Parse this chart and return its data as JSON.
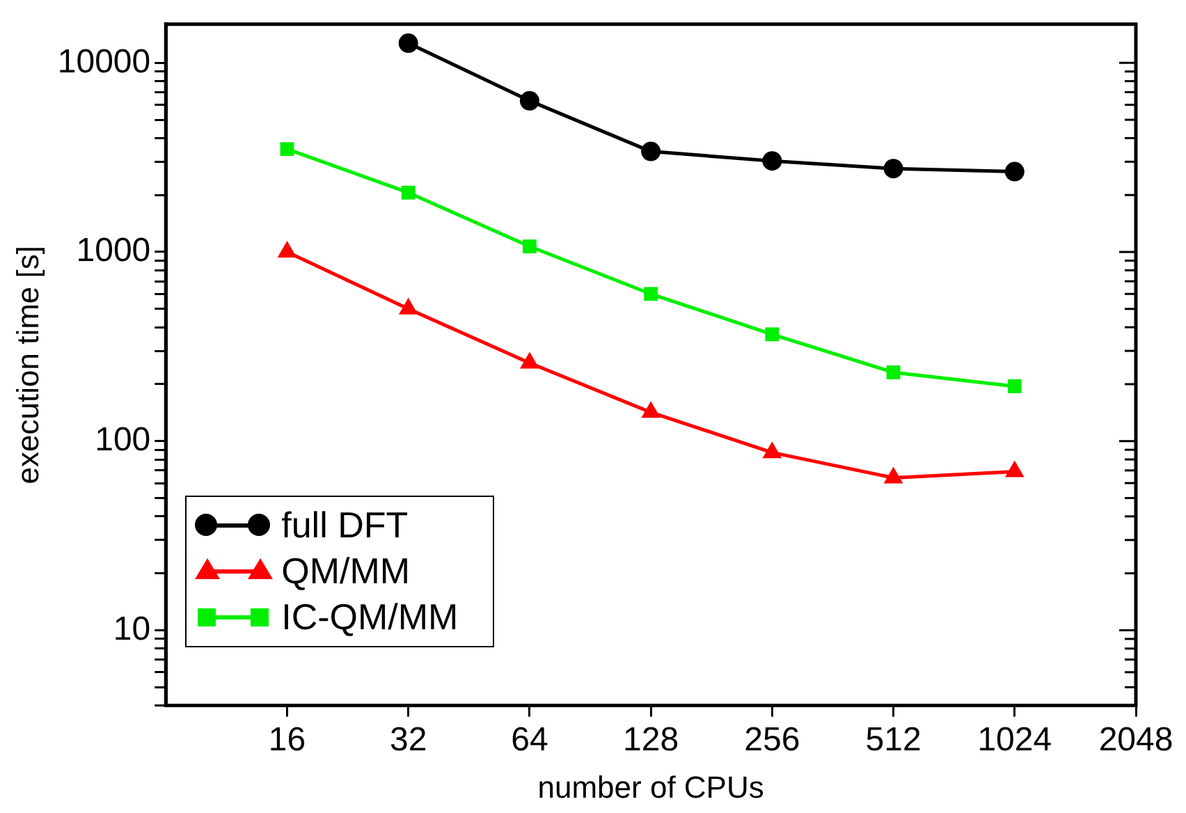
{
  "chart_data": {
    "type": "line",
    "xlabel": "number of CPUs",
    "ylabel": "execution time [s]",
    "log": "xy",
    "grid": false,
    "legend": "bottom left",
    "x": [
      16,
      32,
      64,
      128,
      256,
      512,
      1024
    ],
    "series": [
      {
        "name": "full DFT",
        "color": "#000000",
        "marker": "circle",
        "values": [
          null,
          12700,
          6300,
          3400,
          3030,
          2760,
          2660
        ]
      },
      {
        "name": "QM/MM",
        "color": "#ff0000",
        "marker": "triangle",
        "values": [
          1000,
          500,
          259,
          142,
          87,
          64,
          69
        ]
      },
      {
        "name": "IC-QM/MM",
        "color": "#00ee00",
        "marker": "square",
        "values": [
          3500,
          2060,
          1070,
          600,
          367,
          231,
          195
        ]
      }
    ],
    "xlim": [
      8,
      2048
    ],
    "xticks": [
      16,
      32,
      64,
      128,
      256,
      512,
      1024,
      2048
    ],
    "ylim": [
      4,
      16000
    ],
    "yticks": [
      {
        "value": 4,
        "label": null
      },
      {
        "value": 5,
        "label": null
      },
      {
        "value": 6,
        "label": null
      },
      {
        "value": 7,
        "label": null
      },
      {
        "value": 8,
        "label": null
      },
      {
        "value": 9,
        "label": null
      },
      10,
      {
        "value": 20,
        "label": null
      },
      {
        "value": 30,
        "label": null
      },
      {
        "value": 40,
        "label": null
      },
      {
        "value": 50,
        "label": null
      },
      {
        "value": 60,
        "label": null
      },
      {
        "value": 70,
        "label": null
      },
      {
        "value": 80,
        "label": null
      },
      {
        "value": 90,
        "label": null
      },
      100,
      {
        "value": 200,
        "label": null
      },
      {
        "value": 300,
        "label": null
      },
      {
        "value": 400,
        "label": null
      },
      {
        "value": 500,
        "label": null
      },
      {
        "value": 600,
        "label": null
      },
      {
        "value": 700,
        "label": null
      },
      {
        "value": 800,
        "label": null
      },
      {
        "value": 900,
        "label": null
      },
      1000,
      {
        "value": 2000,
        "label": null
      },
      {
        "value": 3000,
        "label": null
      },
      {
        "value": 4000,
        "label": null
      },
      {
        "value": 5000,
        "label": null
      },
      {
        "value": 6000,
        "label": null
      },
      {
        "value": 7000,
        "label": null
      },
      {
        "value": 8000,
        "label": null
      },
      {
        "value": 9000,
        "label": null
      },
      10000
    ]
  }
}
